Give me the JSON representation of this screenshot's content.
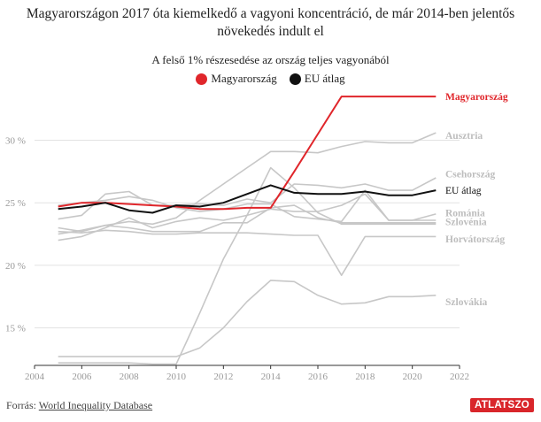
{
  "title": "Magyarországon 2017 óta kiemelkedő a vagyoni koncentráció, de már 2014-ben jelentős növekedés indult el",
  "chart_data": {
    "type": "line",
    "subtitle": "A felső 1% részesedése az ország teljes vagyonából",
    "xlabel": "",
    "ylabel": "",
    "xlim": [
      2004,
      2022
    ],
    "ylim": [
      12,
      34
    ],
    "x_ticks": [
      "2004",
      "2006",
      "2008",
      "2010",
      "2012",
      "2014",
      "2016",
      "2018",
      "2020",
      "2022"
    ],
    "y_ticks": [
      "15 %",
      "20 %",
      "25 %",
      "30 %"
    ],
    "grid": true,
    "legend": [
      "Magyarország",
      "EU átlag"
    ],
    "x": [
      2005,
      2006,
      2007,
      2008,
      2009,
      2010,
      2011,
      2012,
      2013,
      2014,
      2015,
      2016,
      2017,
      2018,
      2019,
      2020,
      2021
    ],
    "series": [
      {
        "name": "Magyarország",
        "color": "#e0262b",
        "label": "Magyarország",
        "highlight": true,
        "values": [
          24.7,
          25.0,
          25.0,
          24.9,
          24.8,
          24.7,
          24.5,
          24.5,
          24.6,
          24.6,
          27.5,
          30.5,
          33.5,
          33.5,
          33.5,
          33.5,
          33.5
        ]
      },
      {
        "name": "EU átlag",
        "color": "#111111",
        "label": "EU átlag",
        "highlight": true,
        "values": [
          24.5,
          24.7,
          25.0,
          24.4,
          24.2,
          24.8,
          24.7,
          25.0,
          25.7,
          26.4,
          25.8,
          25.7,
          25.7,
          25.9,
          25.6,
          25.6,
          26.0
        ]
      },
      {
        "name": "Ausztria",
        "color": "#c7c7c7",
        "label": "Ausztria",
        "values": [
          22.5,
          22.8,
          23.2,
          23.5,
          23.3,
          23.8,
          25.2,
          26.5,
          27.8,
          29.1,
          29.1,
          29.0,
          29.5,
          29.9,
          29.8,
          29.8,
          30.6
        ]
      },
      {
        "name": "Csehország",
        "color": "#c7c7c7",
        "label": "Csehország",
        "values": [
          23.7,
          24.0,
          25.7,
          25.9,
          24.8,
          24.8,
          24.9,
          24.8,
          25.3,
          25.0,
          26.5,
          26.4,
          26.2,
          26.5,
          26.0,
          26.0,
          27.0
        ]
      },
      {
        "name": "Románia",
        "color": "#c7c7c7",
        "label": "Románia",
        "values": [
          22.0,
          22.3,
          23.0,
          23.8,
          23.0,
          23.5,
          23.8,
          23.6,
          24.0,
          24.5,
          24.3,
          24.3,
          24.8,
          25.7,
          23.6,
          23.6,
          24.1
        ]
      },
      {
        "name": "Szlovénia",
        "color": "#c7c7c7",
        "label": "Szlovénia",
        "values": [
          24.8,
          25.0,
          25.2,
          25.5,
          25.2,
          24.6,
          24.3,
          24.5,
          24.9,
          24.9,
          23.9,
          23.7,
          23.5,
          26.0,
          23.6,
          23.6,
          23.6
        ]
      },
      {
        "name": "Horvátország",
        "color": "#c7c7c7",
        "label": "Horvátország",
        "values": [
          22.7,
          22.6,
          22.8,
          22.7,
          22.5,
          22.5,
          22.6,
          22.6,
          22.6,
          22.5,
          22.4,
          22.4,
          19.2,
          22.3,
          22.3,
          22.3,
          22.3
        ]
      },
      {
        "name": "Szlovákia",
        "color": "#c7c7c7",
        "label": "Szlovákia",
        "values": [
          12.7,
          12.7,
          12.7,
          12.7,
          12.7,
          12.7,
          13.4,
          15.0,
          17.1,
          18.8,
          18.7,
          17.6,
          16.9,
          17.0,
          17.5,
          17.5,
          17.6
        ]
      },
      {
        "name": "",
        "color": "#c7c7c7",
        "label": "",
        "values": [
          12.2,
          12.2,
          12.2,
          12.2,
          12.1,
          12.1,
          16.2,
          20.5,
          24.0,
          27.8,
          26.2,
          24.2,
          23.3,
          23.3,
          23.3,
          23.3,
          23.3
        ]
      },
      {
        "name": "",
        "color": "#c7c7c7",
        "label": "",
        "values": [
          23.0,
          22.7,
          23.2,
          23.0,
          22.7,
          22.7,
          22.7,
          23.4,
          23.4,
          24.6,
          24.8,
          23.8,
          23.4,
          23.4,
          23.4,
          23.4,
          23.4
        ]
      }
    ]
  },
  "footer": {
    "source_prefix": "Forrás:",
    "source_link": "World Inequality Database"
  },
  "logo_text": "ATLATSZO"
}
